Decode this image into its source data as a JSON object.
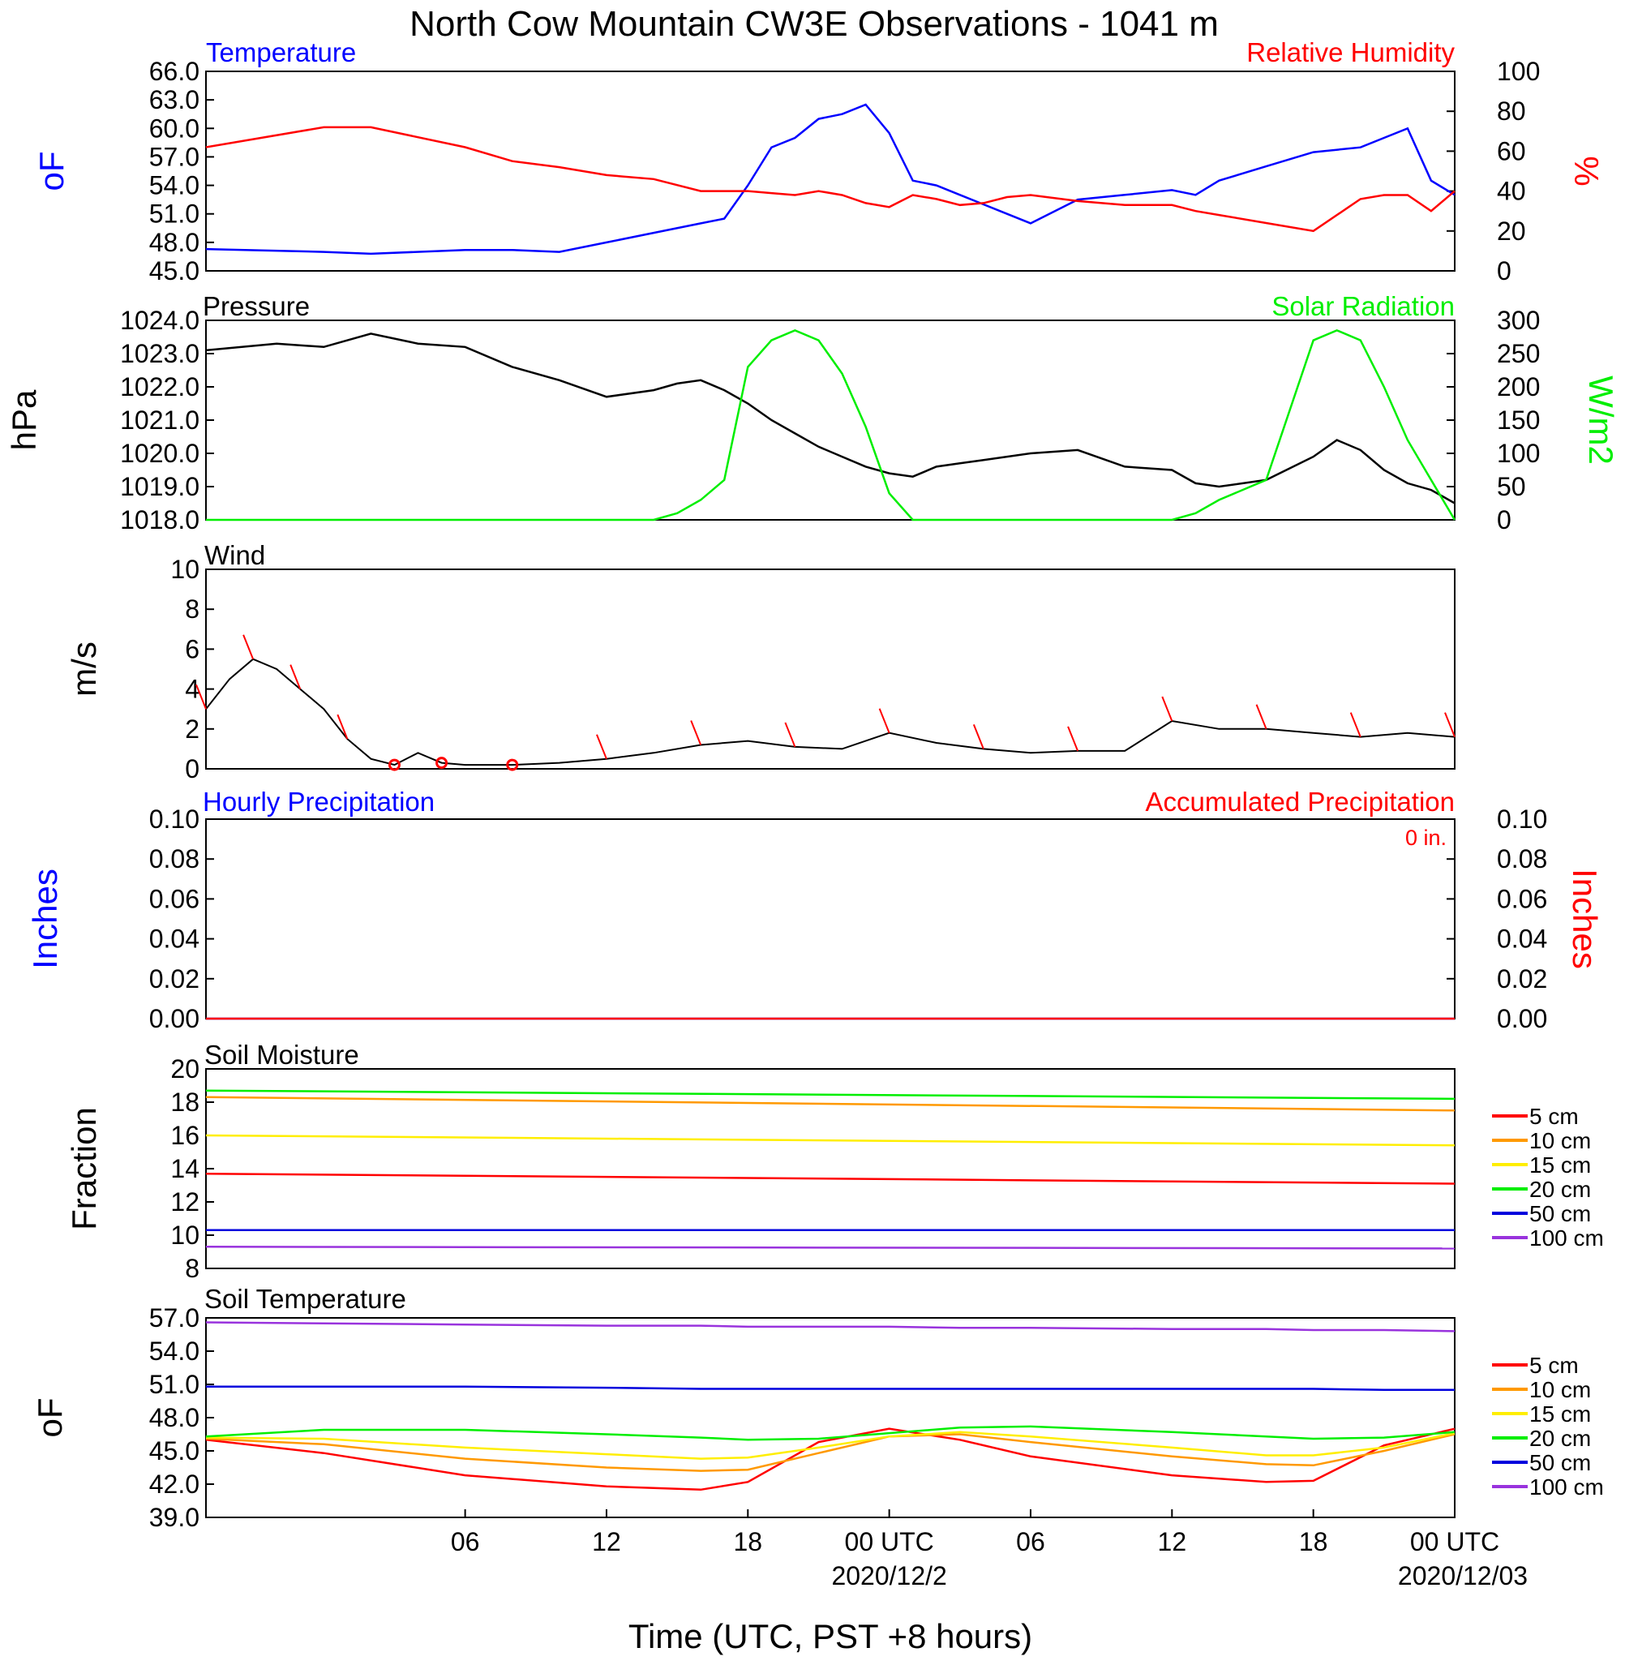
{
  "title": "North Cow Mountain CW3E Observations - 1041 m",
  "x_axis": {
    "label": "Time (UTC, PST +8 hours)",
    "ticks": [
      "06",
      "12",
      "18",
      "00 UTC",
      "06",
      "12",
      "18",
      "00 UTC"
    ],
    "dates": [
      "2020/12/2",
      "2020/12/03"
    ]
  },
  "colors": {
    "temperature": "#0000ff",
    "humidity": "#ff0000",
    "pressure": "#000000",
    "solar": "#00ee00",
    "wind": "#000000",
    "barbs": "#ff0000",
    "precip_hourly": "#0000ff",
    "precip_accum": "#ff0000",
    "soil_5": "#ff0000",
    "soil_10": "#ff9900",
    "soil_15": "#ffee00",
    "soil_20": "#00ee00",
    "soil_50": "#0000dd",
    "soil_100": "#9933dd"
  },
  "panels": {
    "temp_rh": {
      "left_title": "Temperature",
      "right_title": "Relative Humidity",
      "left_unit": "oF",
      "right_unit": "%",
      "left_ticks": [
        "66.0",
        "63.0",
        "60.0",
        "57.0",
        "54.0",
        "51.0",
        "48.0",
        "45.0"
      ],
      "right_ticks": [
        "100",
        "80",
        "60",
        "40",
        "20",
        "0"
      ]
    },
    "pressure_solar": {
      "left_title": "Pressure",
      "right_title": "Solar Radiation",
      "left_unit": "hPa",
      "right_unit": "W/m2",
      "left_ticks": [
        "1024.0",
        "1023.0",
        "1022.0",
        "1021.0",
        "1020.0",
        "1019.0",
        "1018.0"
      ],
      "right_ticks": [
        "300",
        "250",
        "200",
        "150",
        "100",
        "50",
        "0"
      ]
    },
    "wind": {
      "left_title": "Wind",
      "left_unit": "m/s",
      "left_ticks": [
        "10",
        "8",
        "6",
        "4",
        "2",
        "0"
      ]
    },
    "precip": {
      "left_title": "Hourly Precipitation",
      "right_title": "Accumulated Precipitation",
      "total_label": "0 in.",
      "left_unit": "Inches",
      "right_unit": "Inches",
      "left_ticks": [
        "0.10",
        "0.08",
        "0.06",
        "0.04",
        "0.02",
        "0.00"
      ],
      "right_ticks": [
        "0.10",
        "0.08",
        "0.06",
        "0.04",
        "0.02",
        "0.00"
      ]
    },
    "soil_moisture": {
      "left_title": "Soil Moisture",
      "left_unit": "Fraction",
      "left_ticks": [
        "20",
        "18",
        "16",
        "14",
        "12",
        "10",
        "8"
      ],
      "legend": [
        "5 cm",
        "10 cm",
        "15 cm",
        "20 cm",
        "50 cm",
        "100 cm"
      ]
    },
    "soil_temp": {
      "left_title": "Soil Temperature",
      "left_unit": "oF",
      "left_ticks": [
        "57.0",
        "54.0",
        "51.0",
        "48.0",
        "45.0",
        "42.0",
        "39.0"
      ],
      "legend": [
        "5 cm",
        "10 cm",
        "15 cm",
        "20 cm",
        "50 cm",
        "100 cm"
      ]
    }
  },
  "chart_data": [
    {
      "type": "line",
      "title": "Temperature / Relative Humidity",
      "x_hours": [
        -5,
        0,
        2,
        6,
        8,
        10,
        12,
        14,
        16,
        17,
        18,
        19,
        20,
        21,
        22,
        23,
        24,
        25,
        26,
        27,
        28,
        29,
        30,
        32,
        34,
        36,
        37,
        38,
        40,
        42,
        44,
        45,
        46,
        47,
        48
      ],
      "series": [
        {
          "name": "Temperature",
          "axis": "left",
          "ylim": [
            45,
            66
          ],
          "values": [
            47.3,
            47.0,
            46.8,
            47.2,
            47.2,
            47.0,
            48.0,
            49.0,
            50.0,
            50.5,
            54.0,
            58.0,
            59.0,
            61.0,
            61.5,
            62.5,
            59.5,
            54.5,
            54.0,
            53.0,
            52.0,
            51.0,
            50.0,
            52.5,
            53.0,
            53.5,
            53.0,
            54.5,
            56.0,
            57.5,
            58.0,
            59.0,
            60.0,
            54.5,
            53.0
          ]
        },
        {
          "name": "Relative Humidity",
          "axis": "right",
          "ylim": [
            0,
            100
          ],
          "values": [
            62,
            72,
            72,
            62,
            55,
            52,
            48,
            46,
            40,
            40,
            40,
            39,
            38,
            40,
            38,
            34,
            32,
            38,
            36,
            33,
            34,
            37,
            38,
            35,
            33,
            33,
            30,
            28,
            24,
            20,
            36,
            38,
            38,
            30,
            40
          ]
        }
      ]
    },
    {
      "type": "line",
      "title": "Pressure / Solar Radiation",
      "x_hours": [
        -5,
        -2,
        0,
        2,
        4,
        6,
        8,
        10,
        12,
        14,
        15,
        16,
        17,
        18,
        19,
        20,
        21,
        22,
        23,
        24,
        25,
        26,
        27,
        28,
        30,
        32,
        34,
        36,
        37,
        38,
        40,
        42,
        43,
        44,
        45,
        46,
        47,
        48
      ],
      "series": [
        {
          "name": "Pressure",
          "axis": "left",
          "ylim": [
            1018,
            1024
          ],
          "values": [
            1023.1,
            1023.3,
            1023.2,
            1023.6,
            1023.3,
            1023.2,
            1022.6,
            1022.2,
            1021.7,
            1021.9,
            1022.1,
            1022.2,
            1021.9,
            1021.5,
            1021.0,
            1020.6,
            1020.2,
            1019.9,
            1019.6,
            1019.4,
            1019.3,
            1019.6,
            1019.7,
            1019.8,
            1020.0,
            1020.1,
            1019.6,
            1019.5,
            1019.1,
            1019.0,
            1019.2,
            1019.9,
            1020.4,
            1020.1,
            1019.5,
            1019.1,
            1018.9,
            1018.5
          ]
        },
        {
          "name": "Solar Radiation",
          "axis": "right",
          "ylim": [
            0,
            300
          ],
          "values": [
            0,
            0,
            0,
            0,
            0,
            0,
            0,
            0,
            0,
            0,
            10,
            30,
            60,
            230,
            270,
            285,
            270,
            220,
            140,
            40,
            0,
            0,
            0,
            0,
            0,
            0,
            0,
            0,
            10,
            30,
            60,
            270,
            285,
            270,
            200,
            120,
            60,
            0
          ]
        }
      ]
    },
    {
      "type": "line",
      "title": "Wind",
      "x_hours": [
        -5,
        -4,
        -3,
        -2,
        -1,
        0,
        1,
        2,
        3,
        4,
        5,
        6,
        8,
        10,
        12,
        14,
        16,
        18,
        20,
        22,
        24,
        26,
        28,
        30,
        32,
        34,
        36,
        38,
        40,
        42,
        44,
        46,
        48
      ],
      "series": [
        {
          "name": "Wind speed",
          "axis": "left",
          "ylim": [
            0,
            10
          ],
          "values": [
            3.0,
            4.5,
            5.5,
            5.0,
            4.0,
            3.0,
            1.5,
            0.5,
            0.2,
            0.8,
            0.3,
            0.2,
            0.2,
            0.3,
            0.5,
            0.8,
            1.2,
            1.4,
            1.1,
            1.0,
            1.8,
            1.3,
            1.0,
            0.8,
            0.9,
            0.9,
            2.4,
            2.0,
            2.0,
            1.8,
            1.6,
            1.8,
            1.6
          ]
        }
      ]
    },
    {
      "type": "line",
      "title": "Precipitation",
      "x_hours": [
        -5,
        48
      ],
      "series": [
        {
          "name": "Hourly Precipitation",
          "axis": "left",
          "ylim": [
            0,
            0.1
          ],
          "values": [
            0,
            0
          ]
        },
        {
          "name": "Accumulated Precipitation",
          "axis": "right",
          "ylim": [
            0,
            0.1
          ],
          "values": [
            0,
            0
          ]
        }
      ]
    },
    {
      "type": "line",
      "title": "Soil Moisture",
      "x_hours": [
        -5,
        48
      ],
      "ylim": [
        8,
        20
      ],
      "series": [
        {
          "name": "5 cm",
          "values": [
            13.7,
            13.1
          ]
        },
        {
          "name": "10 cm",
          "values": [
            18.3,
            17.5
          ]
        },
        {
          "name": "15 cm",
          "values": [
            16.0,
            15.4
          ]
        },
        {
          "name": "20 cm",
          "values": [
            18.7,
            18.2
          ]
        },
        {
          "name": "50 cm",
          "values": [
            10.3,
            10.3
          ]
        },
        {
          "name": "100 cm",
          "values": [
            9.3,
            9.2
          ]
        }
      ]
    },
    {
      "type": "line",
      "title": "Soil Temperature",
      "x_hours": [
        -5,
        0,
        6,
        12,
        16,
        18,
        21,
        24,
        27,
        30,
        36,
        40,
        42,
        45,
        48
      ],
      "ylim": [
        39,
        57
      ],
      "series": [
        {
          "name": "5 cm",
          "values": [
            46.0,
            44.8,
            42.8,
            41.8,
            41.5,
            42.2,
            45.8,
            47.0,
            46.0,
            44.5,
            42.8,
            42.2,
            42.3,
            45.5,
            47.0
          ]
        },
        {
          "name": "10 cm",
          "values": [
            46.1,
            45.6,
            44.3,
            43.5,
            43.2,
            43.3,
            44.8,
            46.3,
            46.5,
            45.8,
            44.5,
            43.8,
            43.7,
            45.0,
            46.5
          ]
        },
        {
          "name": "15 cm",
          "values": [
            46.2,
            46.1,
            45.3,
            44.7,
            44.3,
            44.4,
            45.3,
            46.3,
            46.7,
            46.3,
            45.3,
            44.6,
            44.6,
            45.3,
            46.6
          ]
        },
        {
          "name": "20 cm",
          "values": [
            46.3,
            46.9,
            46.9,
            46.5,
            46.2,
            46.0,
            46.1,
            46.6,
            47.1,
            47.2,
            46.7,
            46.3,
            46.1,
            46.2,
            46.7
          ]
        },
        {
          "name": "50 cm",
          "values": [
            50.8,
            50.8,
            50.8,
            50.7,
            50.6,
            50.6,
            50.6,
            50.6,
            50.6,
            50.6,
            50.6,
            50.6,
            50.6,
            50.5,
            50.5
          ]
        },
        {
          "name": "100 cm",
          "values": [
            56.6,
            56.5,
            56.4,
            56.3,
            56.3,
            56.2,
            56.2,
            56.2,
            56.1,
            56.1,
            56.0,
            56.0,
            55.9,
            55.9,
            55.8
          ]
        }
      ]
    }
  ]
}
